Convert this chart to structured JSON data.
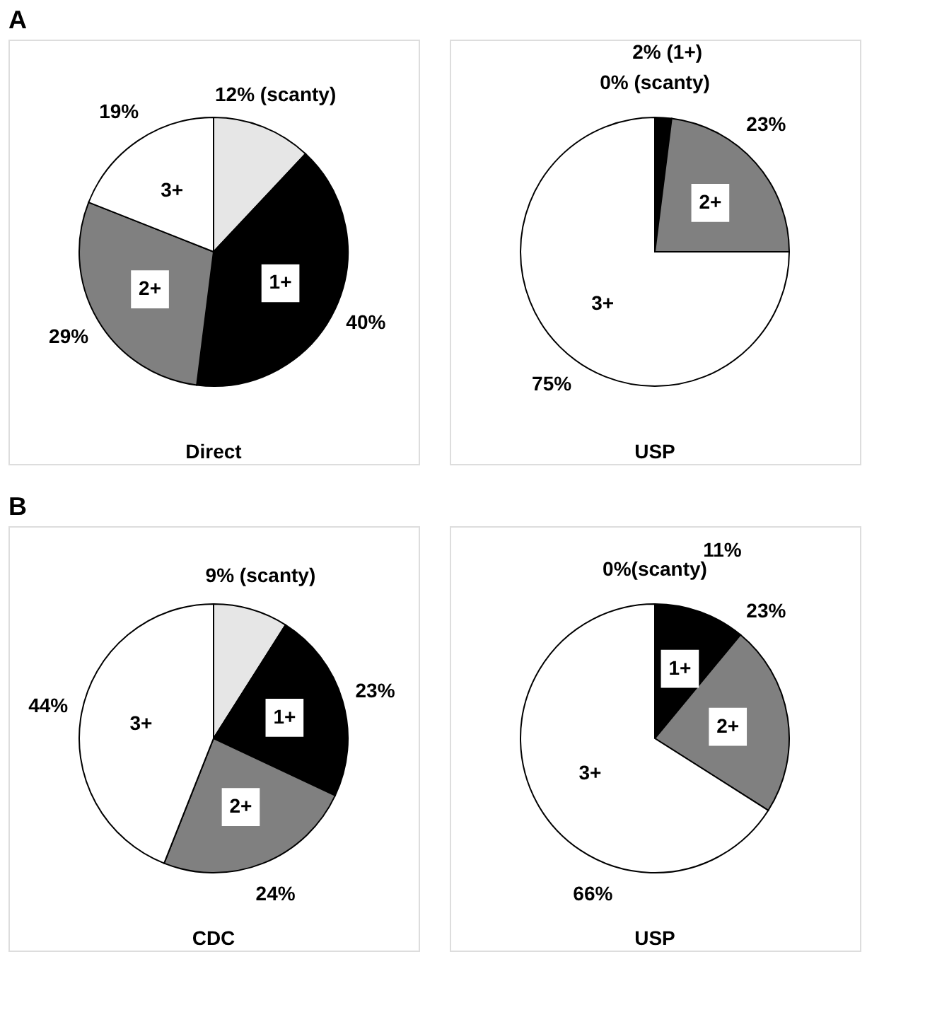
{
  "chart_data": [
    {
      "type": "pie",
      "title": "A",
      "xlabel": "Direct",
      "categories": [
        null,
        "1+",
        "2+",
        "3+"
      ],
      "values": [
        12,
        40,
        29,
        19
      ],
      "colors": [
        "#e6e6e6",
        "#000000",
        "#808080",
        "#ffffff"
      ],
      "value_labels": [
        "12% (scanty)",
        "40%",
        "29%",
        "19%"
      ]
    },
    {
      "type": "pie",
      "xlabel": "USP",
      "categories": [
        null,
        null,
        "2+",
        "3+"
      ],
      "values": [
        0,
        2,
        23,
        75
      ],
      "colors": [
        "#e6e6e6",
        "#000000",
        "#808080",
        "#ffffff"
      ],
      "value_labels": [
        "0% (scanty)",
        "2% (1+)",
        "23%",
        "75%"
      ]
    },
    {
      "type": "pie",
      "title": "B",
      "xlabel": "CDC",
      "categories": [
        null,
        "1+",
        "2+",
        "3+"
      ],
      "values": [
        9,
        23,
        24,
        44
      ],
      "colors": [
        "#e6e6e6",
        "#000000",
        "#808080",
        "#ffffff"
      ],
      "value_labels": [
        "9% (scanty)",
        "23%",
        "24%",
        "44%"
      ]
    },
    {
      "type": "pie",
      "xlabel": "USP",
      "categories": [
        null,
        "1+",
        "2+",
        "3+"
      ],
      "values": [
        0,
        11,
        23,
        66
      ],
      "colors": [
        "#e6e6e6",
        "#000000",
        "#808080",
        "#ffffff"
      ],
      "value_labels": [
        "0%(scanty)",
        "11%",
        "23%",
        "66%"
      ]
    }
  ]
}
